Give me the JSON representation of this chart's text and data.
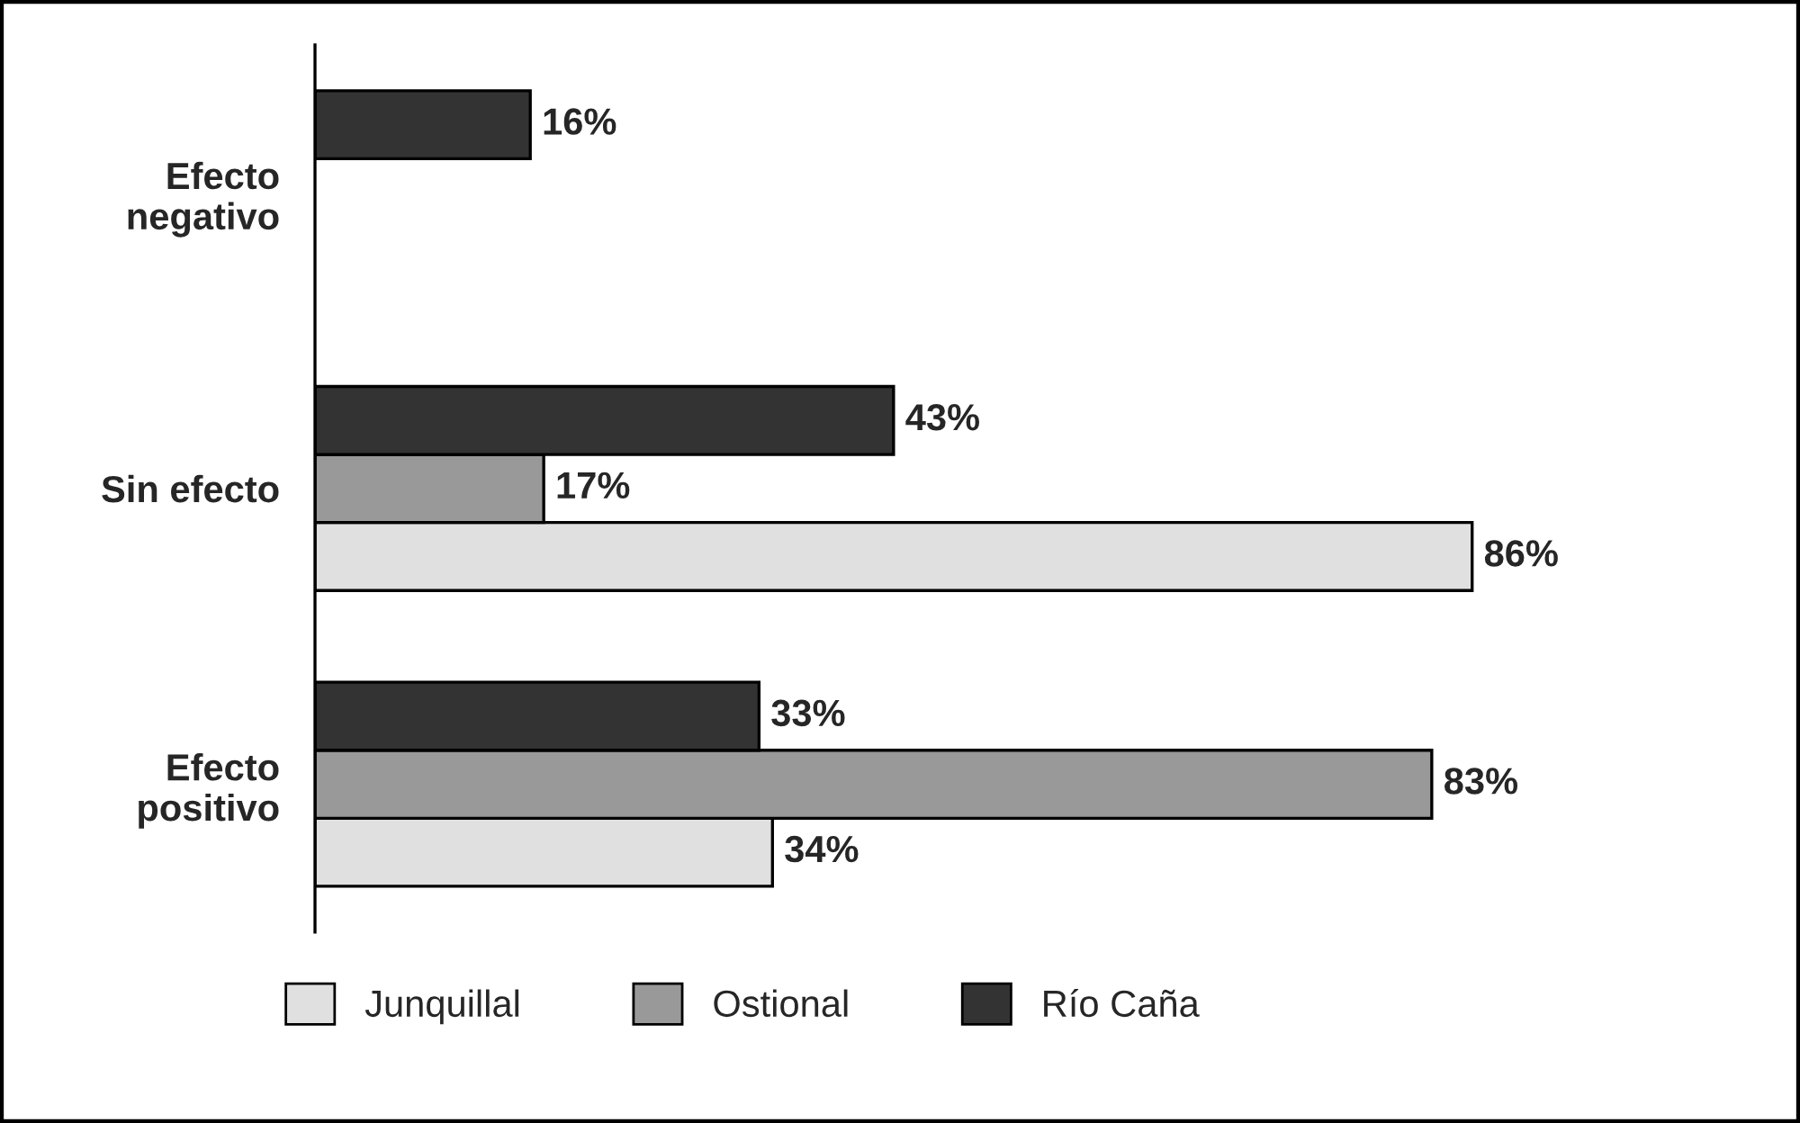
{
  "chart_data": {
    "type": "bar",
    "orientation": "horizontal",
    "categories": [
      "Efecto\nnegativo",
      "Sin efecto",
      "Efecto\npositivo"
    ],
    "series": [
      {
        "name": "Junquillal",
        "color": "#e0e0e0",
        "values": [
          null,
          86,
          34
        ],
        "value_labels": [
          null,
          "86%",
          "34%"
        ]
      },
      {
        "name": "Ostional",
        "color": "#999999",
        "values": [
          null,
          17,
          83
        ],
        "value_labels": [
          null,
          "17%",
          "83%"
        ]
      },
      {
        "name": "Río Caña",
        "color": "#333333",
        "values": [
          16,
          43,
          33
        ],
        "value_labels": [
          "16%",
          "43%",
          "33%"
        ]
      }
    ],
    "legend": "bottom",
    "grid": false
  }
}
